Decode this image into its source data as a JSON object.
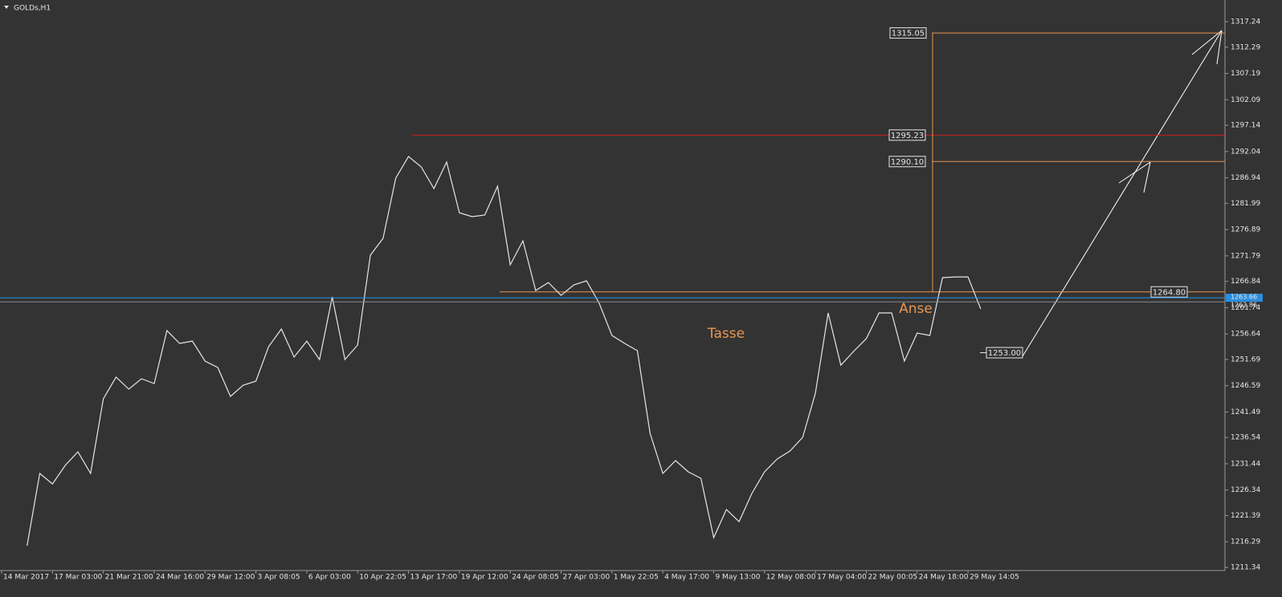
{
  "chart_data": {
    "type": "line",
    "title": "GOLDs,H1",
    "categories": [
      "14 Mar 2017",
      null,
      null,
      null,
      "17 Mar 03:00",
      null,
      null,
      null,
      "21 Mar 21:00",
      null,
      null,
      null,
      "24 Mar 16:00",
      null,
      null,
      null,
      "29 Mar 12:00",
      null,
      null,
      null,
      "3 Apr 08:05",
      null,
      null,
      null,
      "6 Apr 03:00",
      null,
      null,
      null,
      "10 Apr 22:05",
      null,
      null,
      null,
      "13 Apr 17:00",
      null,
      null,
      null,
      "19 Apr 12:00",
      null,
      null,
      null,
      "24 Apr 08:05",
      null,
      null,
      null,
      "27 Apr 03:00",
      null,
      null,
      null,
      "1 May 22:05",
      null,
      null,
      null,
      "4 May 17:00",
      null,
      null,
      null,
      "9 May 13:00",
      null,
      null,
      null,
      "12 May 08:00",
      null,
      null,
      null,
      "17 May 04:00",
      null,
      null,
      null,
      "22 May 00:05",
      null,
      null,
      null,
      "24 May 18:00",
      null,
      null,
      null,
      "29 May 14:05",
      null
    ],
    "series": [
      {
        "name": "GOLDs",
        "color": "#e6e6e6",
        "values": [
          null,
          null,
          1215.54,
          1229.56,
          1227.53,
          1231.12,
          1233.76,
          1229.56,
          1244.04,
          1248.25,
          1245.91,
          1247.94,
          1247.0,
          1257.28,
          1254.79,
          1255.25,
          1251.36,
          1250.12,
          1244.51,
          1246.69,
          1247.47,
          1254.17,
          1257.59,
          1252.14,
          1255.25,
          1251.67,
          1263.82,
          1251.67,
          1254.48,
          1271.92,
          1275.19,
          1286.87,
          1291.08,
          1289.05,
          1284.85,
          1289.99,
          1280.17,
          1279.4,
          1279.71,
          1285.31,
          1270.05,
          1274.72,
          1265.07,
          1266.62,
          1264.13,
          1266.16,
          1266.94,
          1262.58,
          1256.35,
          1254.79,
          1253.39,
          1237.35,
          1229.56,
          1232.05,
          1229.87,
          1228.62,
          1217.1,
          1222.55,
          1220.21,
          1225.67,
          1229.87,
          1232.36,
          1233.92,
          1236.57,
          1245.13,
          1260.71,
          1250.58,
          1253.23,
          1255.72,
          1260.71,
          1260.71,
          1251.36,
          1256.81,
          1256.35,
          1267.56,
          1267.71,
          1267.71,
          1261.49
        ]
      }
    ],
    "ylim": [
      1210.72,
      1321.45
    ],
    "yticks": [
      1211.34,
      1216.29,
      1221.39,
      1226.34,
      1231.44,
      1236.54,
      1241.49,
      1246.59,
      1251.69,
      1256.64,
      1261.74,
      1266.84,
      1271.79,
      1276.89,
      1281.99,
      1286.94,
      1292.04,
      1297.14,
      1302.09,
      1307.19,
      1312.29,
      1317.24
    ],
    "levels": [
      {
        "value": 1315.05,
        "color": "#e8964f"
      },
      {
        "value": 1295.23,
        "color": "#c81e1e"
      },
      {
        "value": 1290.1,
        "label": "1290.10",
        "color": "#e8964f"
      },
      {
        "value": 1264.8,
        "label": "1264.80",
        "color": "#e8964f"
      },
      {
        "value": 1253,
        "label": "1253.00",
        "color": "#e6e6e6"
      }
    ],
    "price_lines": [
      {
        "value": 1263.66,
        "color": "#2a8fe0"
      },
      {
        "value": 1262.86,
        "color": "#8a8a8a"
      }
    ],
    "annotations": [
      {
        "text": "Tasse",
        "color": "#e8964f"
      },
      {
        "text": "Anse",
        "color": "#e8964f"
      }
    ]
  }
}
